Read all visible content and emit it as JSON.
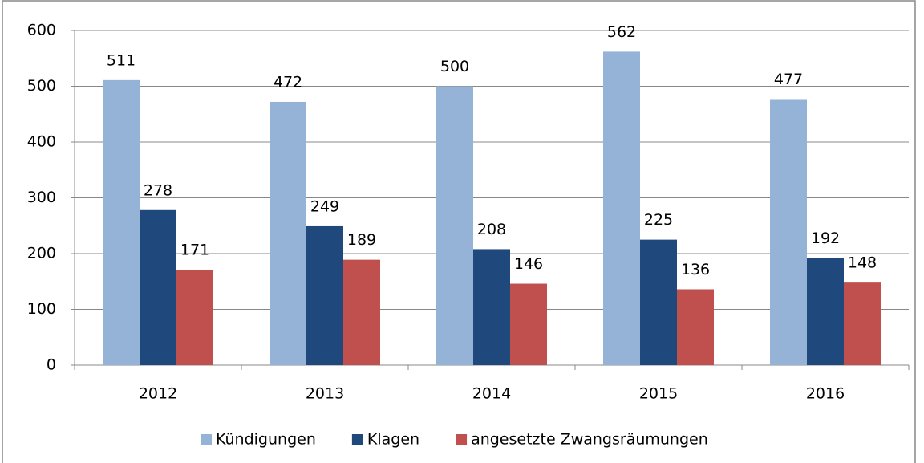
{
  "chart_data": {
    "type": "bar",
    "categories": [
      "2012",
      "2013",
      "2014",
      "2015",
      "2016"
    ],
    "series": [
      {
        "name": "Kündigungen",
        "color": "#95b3d7",
        "values": [
          511,
          472,
          500,
          562,
          477
        ]
      },
      {
        "name": "Klagen",
        "color": "#1f497d",
        "values": [
          278,
          249,
          208,
          225,
          192
        ]
      },
      {
        "name": "angesetzte Zwangsräumungen",
        "color": "#c0504d",
        "values": [
          171,
          189,
          146,
          136,
          148
        ]
      }
    ],
    "ylim": [
      0,
      600
    ],
    "yticks": [
      0,
      100,
      200,
      300,
      400,
      500,
      600
    ],
    "grid": true,
    "legend": "bottom"
  }
}
